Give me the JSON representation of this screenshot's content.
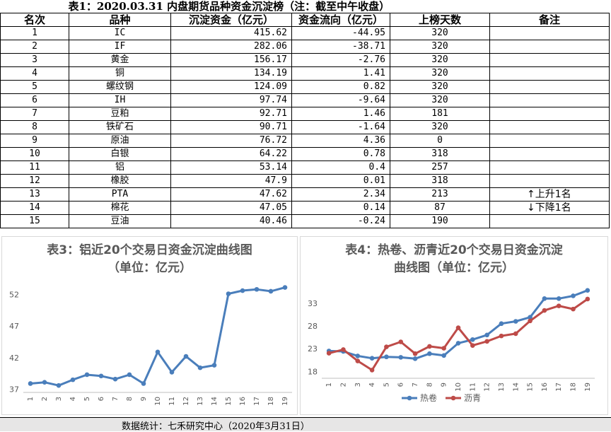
{
  "table": {
    "title": "表1：2020.03.31 内盘期货品种资金沉淀榜（注：截至中午收盘）",
    "headers": [
      "名次",
      "品种",
      "沉淀资金（亿元）",
      "资金流向（亿元）",
      "上榜天数",
      "备注"
    ],
    "rows": [
      {
        "rank": "1",
        "name": "IC",
        "funds": "415.62",
        "flow": "-44.95",
        "days": "320",
        "note": ""
      },
      {
        "rank": "2",
        "name": "IF",
        "funds": "282.06",
        "flow": "-38.71",
        "days": "320",
        "note": ""
      },
      {
        "rank": "3",
        "name": "黄金",
        "funds": "156.17",
        "flow": "-2.76",
        "days": "320",
        "note": ""
      },
      {
        "rank": "4",
        "name": "铜",
        "funds": "134.19",
        "flow": "1.41",
        "days": "320",
        "note": ""
      },
      {
        "rank": "5",
        "name": "螺纹钢",
        "funds": "124.09",
        "flow": "0.82",
        "days": "320",
        "note": ""
      },
      {
        "rank": "6",
        "name": "IH",
        "funds": "97.74",
        "flow": "-9.64",
        "days": "320",
        "note": ""
      },
      {
        "rank": "7",
        "name": "豆粕",
        "funds": "92.71",
        "flow": "1.46",
        "days": "181",
        "note": ""
      },
      {
        "rank": "8",
        "name": "铁矿石",
        "funds": "90.71",
        "flow": "-1.64",
        "days": "320",
        "note": ""
      },
      {
        "rank": "9",
        "name": "原油",
        "funds": "76.72",
        "flow": "4.36",
        "days": "0",
        "note": ""
      },
      {
        "rank": "10",
        "name": "白银",
        "funds": "64.22",
        "flow": "0.78",
        "days": "318",
        "note": ""
      },
      {
        "rank": "11",
        "name": "铝",
        "funds": "53.14",
        "flow": "0.4",
        "days": "257",
        "note": ""
      },
      {
        "rank": "12",
        "name": "橡胶",
        "funds": "47.9",
        "flow": "0.01",
        "days": "318",
        "note": ""
      },
      {
        "rank": "13",
        "name": "PTA",
        "funds": "47.62",
        "flow": "2.34",
        "days": "213",
        "note": "↑上升1名"
      },
      {
        "rank": "14",
        "name": "棉花",
        "funds": "47.05",
        "flow": "0.14",
        "days": "87",
        "note": "↓下降1名"
      },
      {
        "rank": "15",
        "name": "豆油",
        "funds": "40.46",
        "flow": "-0.24",
        "days": "190",
        "note": ""
      }
    ]
  },
  "chart_data": [
    {
      "type": "line",
      "title_line1": "表3：铝近20个交易日资金沉淀曲线图",
      "title_line2": "（单位：亿元）",
      "x": [
        "1",
        "2",
        "3",
        "4",
        "5",
        "6",
        "7",
        "8",
        "9",
        "10",
        "11",
        "12",
        "13",
        "14",
        "15",
        "16",
        "17",
        "18",
        "19"
      ],
      "series": [
        {
          "values": [
            37.9,
            38.1,
            37.6,
            38.5,
            39.3,
            39.1,
            38.6,
            39.3,
            37.9,
            42.9,
            39.7,
            42.2,
            40.4,
            40.8,
            52.1,
            52.6,
            52.8,
            52.5,
            53.1
          ],
          "color": "#4a7ebb"
        }
      ],
      "yticks": [
        37,
        42,
        47,
        52
      ],
      "ylim": [
        36.5,
        53.5
      ],
      "grid": false
    },
    {
      "type": "line",
      "title_line1": "表4：热卷、沥青近20个交易日资金沉淀",
      "title_line2": "曲线图（单位：亿元）",
      "x": [
        "1",
        "2",
        "3",
        "4",
        "5",
        "6",
        "7",
        "8",
        "9",
        "10",
        "11",
        "12",
        "13",
        "14",
        "15",
        "16",
        "17",
        "18",
        "19"
      ],
      "series": [
        {
          "name": "热卷",
          "values": [
            22.5,
            22.4,
            21.4,
            20.9,
            21.2,
            21.1,
            20.8,
            21.9,
            21.5,
            24.2,
            25.0,
            26.0,
            28.5,
            29.0,
            29.9,
            34.0,
            34.0,
            34.6,
            35.8
          ],
          "color": "#4a7ebb"
        },
        {
          "name": "沥青",
          "values": [
            22.0,
            22.8,
            20.3,
            18.3,
            23.4,
            24.5,
            21.9,
            23.5,
            23.1,
            27.6,
            23.7,
            24.6,
            25.8,
            26.3,
            29.1,
            31.4,
            32.4,
            31.7,
            33.9
          ],
          "color": "#be4b48"
        }
      ],
      "yticks": [
        18,
        23,
        28,
        33
      ],
      "ylim": [
        16.5,
        37
      ],
      "legend": "bottom",
      "grid": false
    }
  ],
  "footer": "数据统计：七禾研究中心（2020年3月31日）"
}
